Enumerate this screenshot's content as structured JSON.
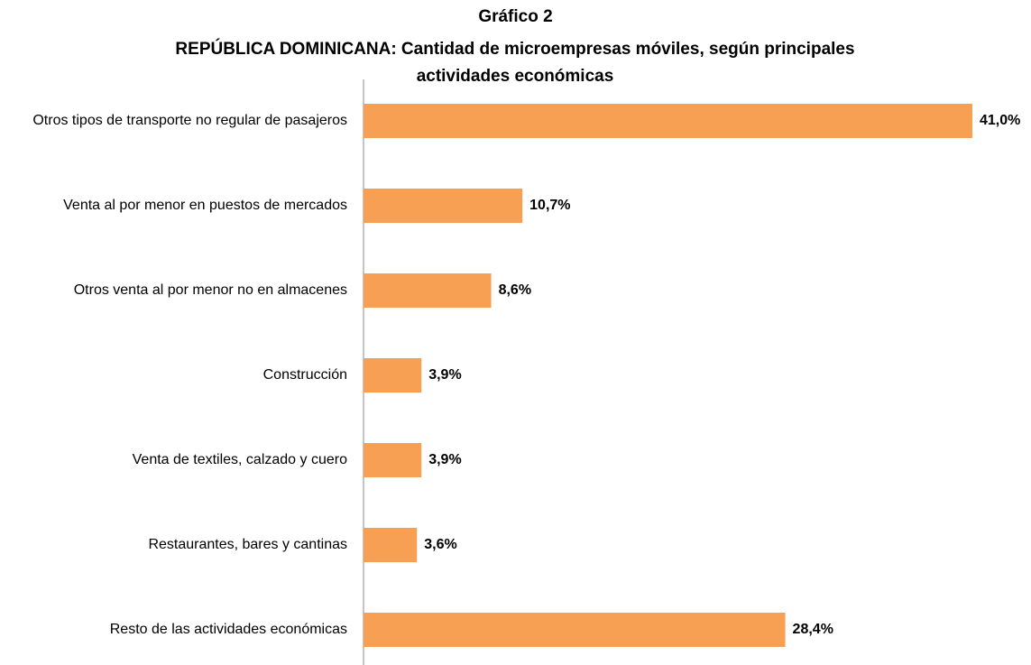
{
  "chart_data": {
    "type": "bar",
    "orientation": "horizontal",
    "title": "Gráfico 2",
    "subtitle": "REPÚBLICA DOMINICANA: Cantidad de microempresas móviles, según principales actividades económicas",
    "categories": [
      "Otros tipos de transporte no regular de pasajeros",
      "Venta al por menor en puestos de mercados",
      "Otros venta al por menor no en almacenes",
      "Construcción",
      "Venta de textiles, calzado y cuero",
      "Restaurantes, bares y cantinas",
      "Resto de las actividades económicas"
    ],
    "values": [
      41.0,
      10.7,
      8.6,
      3.9,
      3.9,
      3.6,
      28.4
    ],
    "value_labels": [
      "41,0%",
      "10,7%",
      "8,6%",
      "3,9%",
      "3,9%",
      "3,6%",
      "28,4%"
    ],
    "color": "#f79f53"
  }
}
